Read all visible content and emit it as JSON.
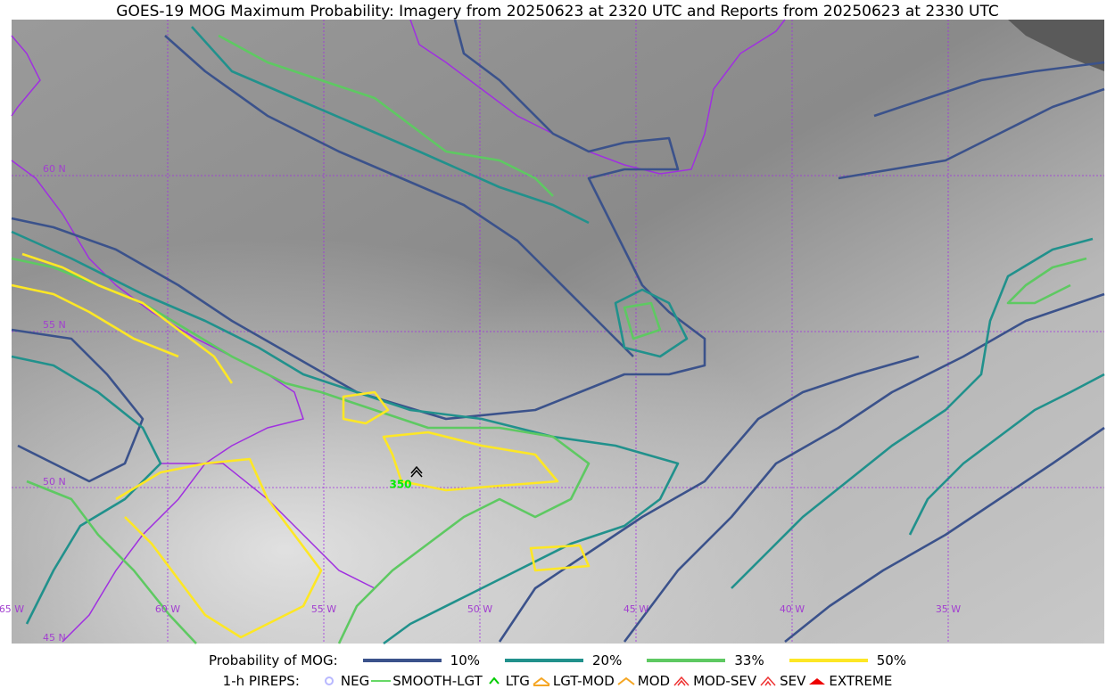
{
  "title": "GOES-19 MOG Maximum Probability: Imagery from 20250623 at 2320 UTC and Reports from 20250623 at 2330 UTC",
  "map": {
    "lat_labels": [
      "60 N",
      "55 N",
      "50 N",
      "45 N"
    ],
    "lon_labels": [
      "65 W",
      "60 W",
      "55 W",
      "50 W",
      "45 W",
      "40 W",
      "35 W"
    ],
    "pirep_label": "350"
  },
  "legend": {
    "probability": {
      "label": "Probability of MOG:",
      "items": [
        "10%",
        "20%",
        "33%",
        "50%"
      ]
    },
    "pireps": {
      "label": "1-h PIREPS:",
      "items": [
        "NEG",
        "SMOOTH-LGT",
        "LTG",
        "LGT-MOD",
        "MOD",
        "MOD-SEV",
        "SEV",
        "EXTREME"
      ]
    }
  }
}
